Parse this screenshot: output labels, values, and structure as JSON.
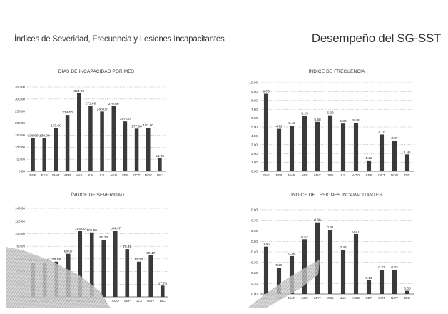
{
  "slide": {
    "title": "Índices de Severidad, Frecuencia y Lesiones Incapacitantes",
    "heading": "Desempeño del SG-SST"
  },
  "chart_data": [
    {
      "type": "bar",
      "title": "DÍAS DE INCAPACIDAD POR MES",
      "categories": [
        "ENE",
        "FEB",
        "MAR",
        "ABR",
        "MAY",
        "JUN",
        "JUL",
        "AGO",
        "SEP",
        "OCT",
        "NOV",
        "DIC"
      ],
      "values": [
        138.0,
        138.0,
        179.0,
        234.0,
        324.0,
        271.0,
        248.0,
        270.0,
        207.0,
        177.0,
        181.0,
        54.0
      ],
      "value_labels": [
        "138.00",
        "138.00",
        "179.00",
        "234.00",
        "324.00",
        "271.00",
        "248.00",
        "270.00",
        "207.00",
        "177.00",
        "181.00",
        "54.00"
      ],
      "ylim": [
        0,
        350
      ],
      "yticks": [
        "0.00",
        "50.00",
        "100.00",
        "150.00",
        "200.00",
        "250.00",
        "300.00",
        "350.00"
      ],
      "grid": true,
      "color": "#3a3a3a"
    },
    {
      "type": "bar",
      "title": "ÍNDICE DE FRECUENCIA",
      "categories": [
        "ENE",
        "FEB",
        "MAR",
        "ABR",
        "MAY",
        "JUN",
        "JUL",
        "AGO",
        "SEP",
        "OCT",
        "NOV",
        "DIC"
      ],
      "values": [
        8.75,
        4.79,
        5.15,
        6.25,
        5.58,
        6.32,
        5.39,
        5.48,
        1.22,
        4.16,
        3.47,
        1.91
      ],
      "value_labels": [
        "8.75",
        "4.79",
        "5.15",
        "6.25",
        "5.58",
        "6.32",
        "5.39",
        "5.48",
        "1.22",
        "4.16",
        "3.47",
        "1.91"
      ],
      "ylim": [
        0,
        10
      ],
      "yticks": [
        "0.00",
        "1.00",
        "2.00",
        "3.00",
        "4.00",
        "5.00",
        "6.00",
        "7.00",
        "8.00",
        "9.00",
        "10.00"
      ],
      "grid": true,
      "color": "#3a3a3a"
    },
    {
      "type": "bar",
      "title": "ÍNDICE DE SEVERIDAD",
      "categories": [
        "ENE",
        "FEB",
        "MAR",
        "ABR",
        "MAY",
        "JUN",
        "JUL",
        "AGO",
        "SEP",
        "OCT",
        "NOV",
        "DIC"
      ],
      "values": [
        54.28,
        54.28,
        55.56,
        68.07,
        104.0,
        101.86,
        90.22,
        104.47,
        75.48,
        55.59,
        65.47,
        17.75
      ],
      "value_labels": [
        "54.28",
        "54.28",
        "55.56",
        "68.07",
        "104.00",
        "101.86",
        "90.22",
        "104.47",
        "75.48",
        "55.59",
        "65.47",
        "17.75"
      ],
      "ylim": [
        0,
        140
      ],
      "yticks": [
        "0.00",
        "20.00",
        "40.00",
        "60.00",
        "80.00",
        "100.00",
        "120.00",
        "140.00"
      ],
      "grid": true,
      "color": "#3a3a3a"
    },
    {
      "type": "bar",
      "title": "ÍNDICE DE LESIONES INCAPACITANTES",
      "categories": [
        "ENE",
        "FEB",
        "MAR",
        "ABR",
        "MAY",
        "JUN",
        "JUL",
        "AGO",
        "SEP",
        "OCT",
        "NOV",
        "DIC"
      ],
      "values": [
        0.45,
        0.25,
        0.36,
        0.52,
        0.68,
        0.61,
        0.42,
        0.57,
        0.13,
        0.23,
        0.23,
        0.03
      ],
      "value_labels": [
        "0.45",
        "0.25",
        "0.36",
        "0.52",
        "0.68",
        "0.61",
        "0.42",
        "0.57",
        "0.13",
        "0.23",
        "0.23",
        "0.03"
      ],
      "ylim": [
        0,
        0.8
      ],
      "yticks": [
        "0.00",
        "0.10",
        "0.20",
        "0.30",
        "0.40",
        "0.50",
        "0.60",
        "0.70",
        "0.80"
      ],
      "grid": true,
      "color": "#3a3a3a"
    }
  ]
}
